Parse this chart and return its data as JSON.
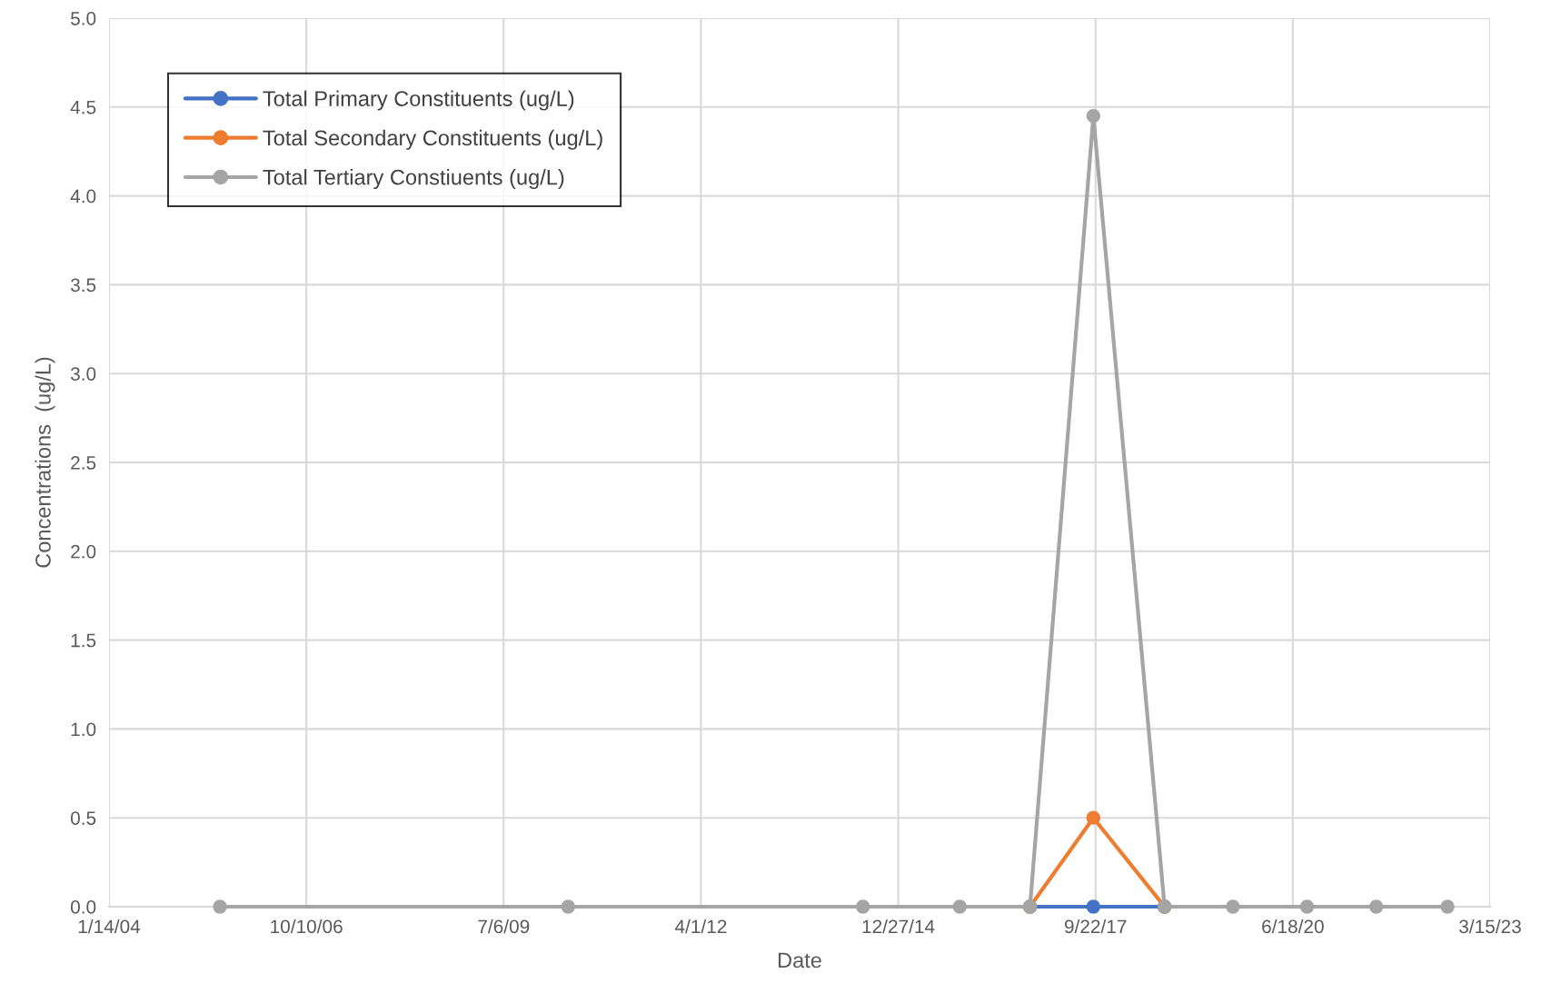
{
  "chart_data": {
    "type": "line",
    "xlabel": "Date",
    "ylabel": "Concentrations  (ug/L)",
    "x": [
      "2005-07-29",
      "2010-05-29",
      "2014-07-01",
      "2015-11-04",
      "2016-10-25",
      "2017-09-11",
      "2018-09-07",
      "2019-08-19",
      "2020-08-29",
      "2021-08-15",
      "2022-08-11"
    ],
    "series": [
      {
        "name": "Total Primary Constituents (ug/L)",
        "color": "#4472c4",
        "values": [
          null,
          null,
          null,
          null,
          0,
          0,
          0,
          null,
          null,
          null,
          null
        ]
      },
      {
        "name": "Total Secondary Constituents (ug/L)",
        "color": "#ed7d31",
        "values": [
          null,
          null,
          null,
          null,
          0,
          0.5,
          0,
          null,
          null,
          null,
          null
        ]
      },
      {
        "name": "Total Tertiary Constiuents (ug/L)",
        "color": "#a5a5a5",
        "values": [
          0,
          0,
          0,
          0,
          0,
          4.45,
          0,
          0,
          0,
          0,
          0
        ]
      }
    ],
    "xlim": [
      "2004-01-14",
      "2023-03-15"
    ],
    "xticks": [
      {
        "value": "2004-01-14",
        "label": "1/14/04"
      },
      {
        "value": "2006-10-10",
        "label": "10/10/06"
      },
      {
        "value": "2009-07-06",
        "label": "7/6/09"
      },
      {
        "value": "2012-04-01",
        "label": "4/1/12"
      },
      {
        "value": "2014-12-27",
        "label": "12/27/14"
      },
      {
        "value": "2017-09-22",
        "label": "9/22/17"
      },
      {
        "value": "2020-06-18",
        "label": "6/18/20"
      },
      {
        "value": "2023-03-15",
        "label": "3/15/23"
      }
    ],
    "ylim": [
      0,
      5
    ],
    "yticks": [
      {
        "value": 0,
        "label": "0.0"
      },
      {
        "value": 0.5,
        "label": "0.5"
      },
      {
        "value": 1,
        "label": "1.0"
      },
      {
        "value": 1.5,
        "label": "1.5"
      },
      {
        "value": 2,
        "label": "2.0"
      },
      {
        "value": 2.5,
        "label": "2.5"
      },
      {
        "value": 3,
        "label": "3.0"
      },
      {
        "value": 3.5,
        "label": "3.5"
      },
      {
        "value": 4,
        "label": "4.0"
      },
      {
        "value": 4.5,
        "label": "4.5"
      },
      {
        "value": 5,
        "label": "5.0"
      }
    ],
    "grid": true,
    "legend": "top left",
    "marker": "circle",
    "line_style": "solid"
  }
}
